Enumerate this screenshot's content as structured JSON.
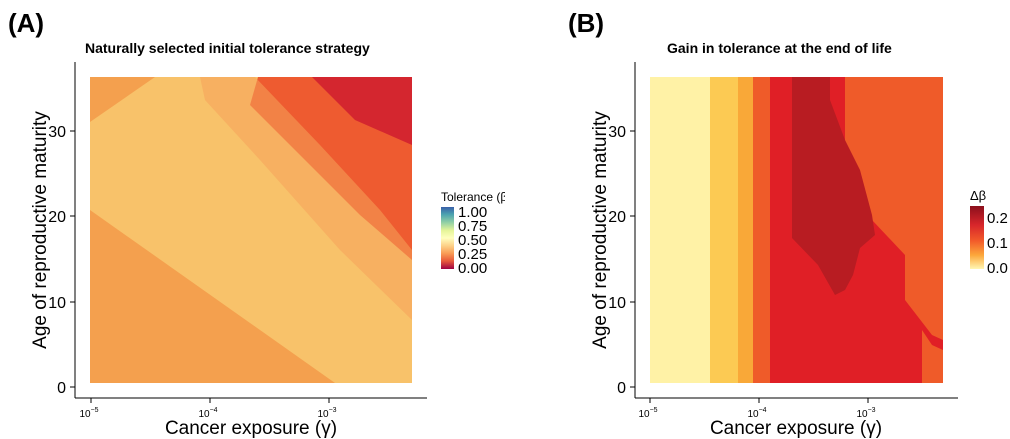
{
  "chart_data": [
    {
      "type": "heatmap",
      "panel_label": "(A)",
      "title": "Naturally selected initial tolerance strategy",
      "xlabel": "Cancer exposure (γ)",
      "ylabel": "Age of reproductive maturity",
      "xscale": "log",
      "xlim": [
        1e-05,
        0.005
      ],
      "ylim": [
        1,
        36
      ],
      "x_ticks": [
        {
          "value": 1e-05,
          "base": "10",
          "exp": "−5"
        },
        {
          "value": 0.0001,
          "base": "10",
          "exp": "−4"
        },
        {
          "value": 0.001,
          "base": "10",
          "exp": "−3"
        }
      ],
      "y_ticks": [
        0,
        10,
        20,
        30
      ],
      "legend": {
        "title": "Tolerance (β)",
        "position": "right",
        "labels": [
          "1.00",
          "0.75",
          "0.50",
          "0.25",
          "0.00"
        ],
        "values": [
          1.0,
          0.75,
          0.5,
          0.25,
          0.0
        ],
        "colors": [
          "#3a5fa8",
          "#4ba3b0",
          "#92d0a5",
          "#e6f599",
          "#ffffbf",
          "#fdd38a",
          "#f99b55",
          "#e85a3a",
          "#c1272d",
          "#9e0142"
        ]
      },
      "bands": [
        {
          "range": "lowest",
          "value": 0.3,
          "color": "#f4a04e"
        },
        {
          "range": "middle",
          "value": 0.35,
          "color": "#f8c26a"
        },
        {
          "range": "upper",
          "value": 0.22,
          "color": "#ee5b30"
        },
        {
          "range": "highest",
          "value": 0.12,
          "color": "#d4262f"
        }
      ]
    },
    {
      "type": "heatmap",
      "panel_label": "(B)",
      "title": "Gain in tolerance at the end of life",
      "xlabel": "Cancer exposure (γ)",
      "ylabel": "Age of reproductive maturity",
      "xscale": "log",
      "xlim": [
        1e-05,
        0.005
      ],
      "ylim": [
        1,
        36
      ],
      "x_ticks": [
        {
          "value": 1e-05,
          "base": "10",
          "exp": "−5"
        },
        {
          "value": 0.0001,
          "base": "10",
          "exp": "−4"
        },
        {
          "value": 0.001,
          "base": "10",
          "exp": "−3"
        }
      ],
      "y_ticks": [
        0,
        10,
        20,
        30
      ],
      "legend": {
        "title": "Δβ",
        "position": "right",
        "labels": [
          "0.2",
          "0.1",
          "0.0"
        ],
        "values": [
          0.2,
          0.1,
          0.0
        ],
        "colors": [
          "#8b0f1c",
          "#d7262b",
          "#f25a2a",
          "#fca73b",
          "#fff7b3"
        ]
      },
      "bands": [
        {
          "x_range": [
            1e-05,
            3e-05
          ],
          "value": 0.0,
          "color": "#fff2a6"
        },
        {
          "x_range": [
            3e-05,
            6e-05
          ],
          "value": 0.04,
          "color": "#fcca53"
        },
        {
          "x_range": [
            6e-05,
            8e-05
          ],
          "value": 0.07,
          "color": "#f9a838"
        },
        {
          "x_range": [
            8e-05,
            0.00013
          ],
          "value": 0.12,
          "color": "#ef5b29"
        },
        {
          "x_range": [
            0.00013,
            0.0025
          ],
          "value": 0.17,
          "color": "#e01f26"
        },
        {
          "x_range": [
            0.00022,
            0.0008
          ],
          "y_range": [
            8,
            35
          ],
          "value": 0.24,
          "color": "#b81c22"
        },
        {
          "x_range": [
            0.0007,
            0.005
          ],
          "value": 0.12,
          "color": "#ef5b29"
        }
      ]
    }
  ]
}
